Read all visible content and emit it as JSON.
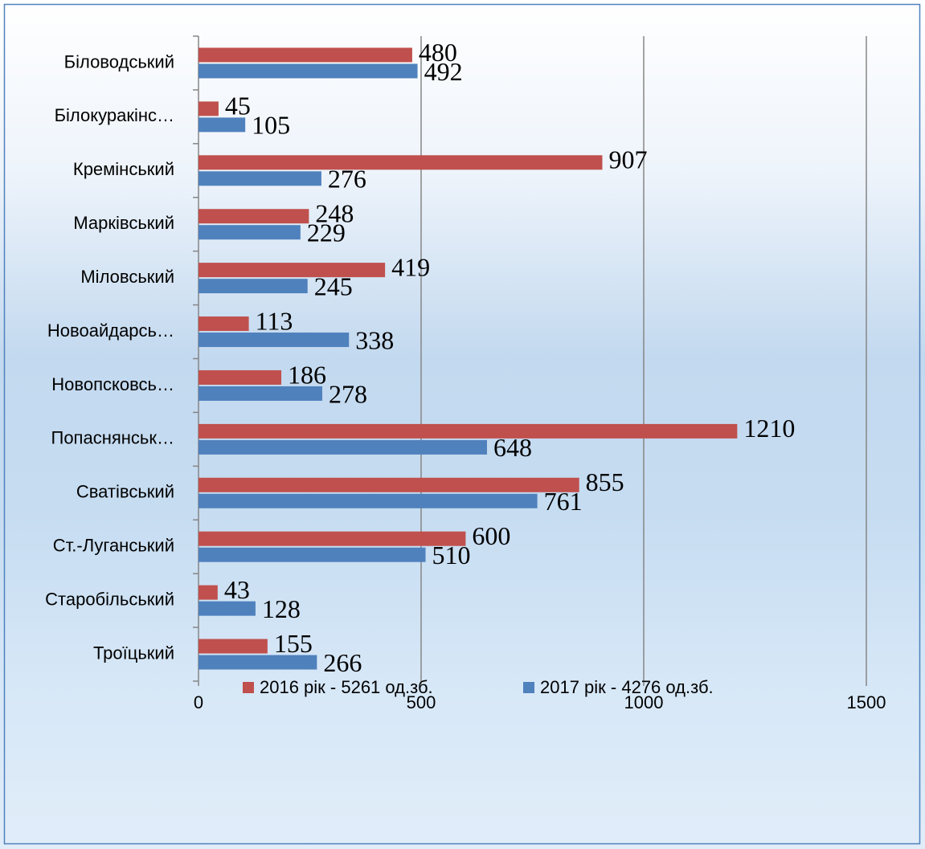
{
  "chart_data": {
    "type": "bar",
    "orientation": "horizontal",
    "categories": [
      "Біловодський",
      "Білокуракінс…",
      "Кремінський",
      "Марківський",
      "Міловський",
      "Новоайдарсь…",
      "Новопсковсь…",
      "Попаснянськ…",
      "Сватівський",
      "Ст.-Луганський",
      "Старобільський",
      "Троїцький"
    ],
    "series": [
      {
        "name": "2016 рік - 5261 од.зб.",
        "color": "#c0504d",
        "values": [
          480,
          45,
          907,
          248,
          419,
          113,
          186,
          1210,
          855,
          600,
          43,
          155
        ]
      },
      {
        "name": "2017 рік - 4276 од.зб.",
        "color": "#4f81bd",
        "values": [
          492,
          105,
          276,
          229,
          245,
          338,
          278,
          648,
          761,
          510,
          128,
          266
        ]
      }
    ],
    "xlim": [
      0,
      1500
    ],
    "xticks": [
      0,
      500,
      1000,
      1500
    ],
    "grid": true,
    "legend": "bottom"
  }
}
